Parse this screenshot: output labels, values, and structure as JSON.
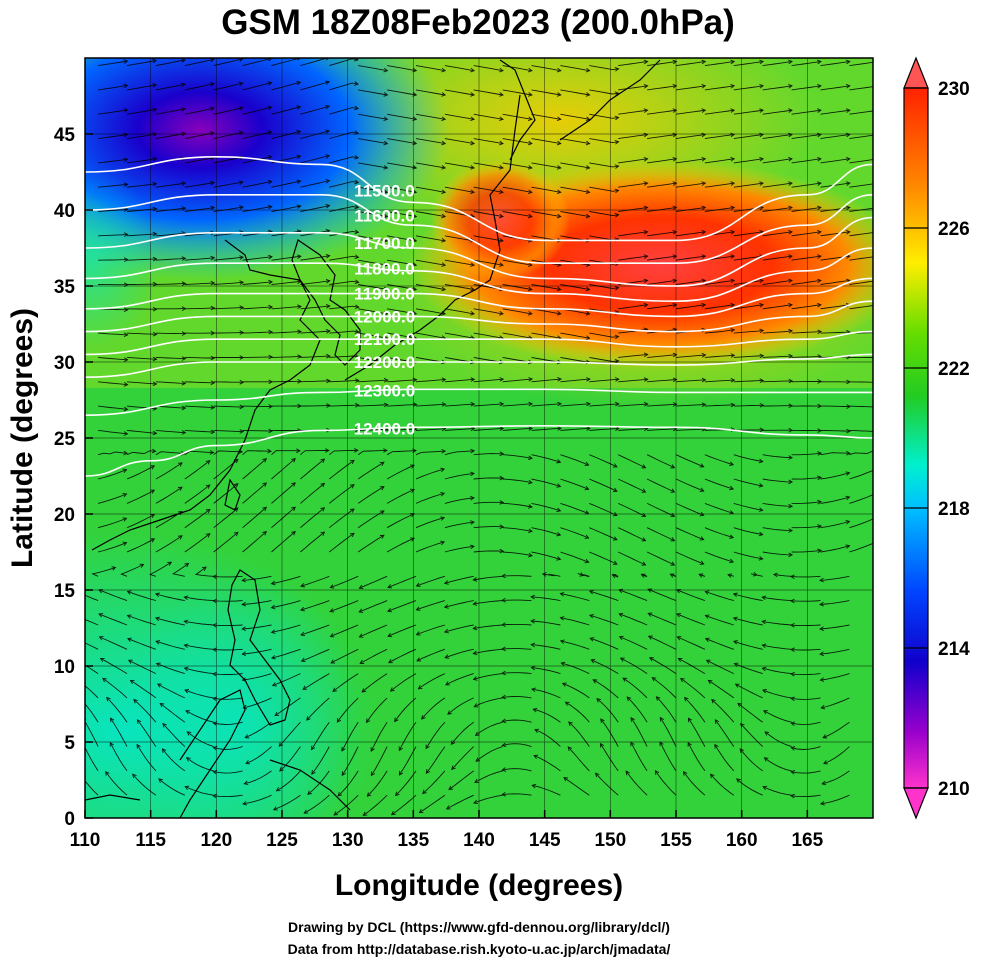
{
  "title": "GSM 18Z08Feb2023 (200.0hPa)",
  "xlabel": "Longitude (degrees)",
  "ylabel": "Latitude  (degrees)",
  "credits": [
    "Drawing by DCL (https://www.gfd-dennou.org/library/dcl/)",
    "Data from http://database.rish.kyoto-u.ac.jp/arch/jmadata/"
  ],
  "chart_data": {
    "type": "heatmap",
    "title": "GSM 18Z08Feb2023 (200.0hPa)",
    "xlabel": "Longitude (degrees)",
    "ylabel": "Latitude  (degrees)",
    "xlim": [
      110,
      170
    ],
    "ylim": [
      0,
      50
    ],
    "x_ticks": [
      110,
      115,
      120,
      125,
      130,
      135,
      140,
      145,
      150,
      155,
      160,
      165
    ],
    "y_ticks": [
      0,
      5,
      10,
      15,
      20,
      25,
      30,
      35,
      40,
      45
    ],
    "grid": true,
    "colorbar": {
      "range": [
        210,
        230
      ],
      "ticks": [
        210,
        214,
        218,
        222,
        226,
        230
      ],
      "placement": "right",
      "extend": "both",
      "colors": [
        "#ff33cc",
        "#9900cc",
        "#1100cc",
        "#0044ff",
        "#00c0ff",
        "#00f0d0",
        "#22cc22",
        "#99e000",
        "#ffee00",
        "#ff8800",
        "#ff2200",
        "#ff5555"
      ]
    },
    "contours": [
      {
        "label": "11500.0",
        "lon": [
          110,
          120,
          128,
          135,
          145,
          155,
          165,
          170
        ],
        "lat": [
          42.5,
          43.5,
          43,
          40.5,
          38,
          38,
          41,
          43
        ]
      },
      {
        "label": "11600.0",
        "lon": [
          110,
          120,
          128,
          135,
          145,
          155,
          165,
          170
        ],
        "lat": [
          40,
          41,
          41,
          39,
          36.5,
          36.5,
          39,
          41
        ]
      },
      {
        "label": "11700.0",
        "lon": [
          110,
          120,
          128,
          135,
          145,
          155,
          165,
          170
        ],
        "lat": [
          37.5,
          38.5,
          38.5,
          37.5,
          35.5,
          35,
          37.5,
          39.5
        ]
      },
      {
        "label": "11800.0",
        "lon": [
          110,
          120,
          128,
          135,
          145,
          155,
          165,
          170
        ],
        "lat": [
          35.5,
          36.5,
          36.5,
          36,
          34.5,
          34,
          36,
          37.5
        ]
      },
      {
        "label": "11900.0",
        "lon": [
          110,
          120,
          128,
          135,
          145,
          155,
          165,
          170
        ],
        "lat": [
          33.5,
          34.5,
          34.5,
          34.5,
          33.5,
          33,
          34.5,
          35.5
        ]
      },
      {
        "label": "12000.0",
        "lon": [
          110,
          120,
          128,
          135,
          145,
          155,
          165,
          170
        ],
        "lat": [
          32,
          33,
          33,
          33,
          32.5,
          32,
          33,
          34
        ]
      },
      {
        "label": "12100.0",
        "lon": [
          110,
          120,
          128,
          135,
          145,
          155,
          165,
          170
        ],
        "lat": [
          30.5,
          31.5,
          31.5,
          31.5,
          31.5,
          31,
          31.5,
          32
        ]
      },
      {
        "label": "12200.0",
        "lon": [
          110,
          120,
          128,
          135,
          145,
          155,
          165,
          170
        ],
        "lat": [
          29,
          30,
          30,
          30,
          30,
          29.8,
          30.2,
          30.5
        ]
      },
      {
        "label": "12300.0",
        "lon": [
          110,
          120,
          128,
          135,
          145,
          155,
          165,
          170
        ],
        "lat": [
          26.5,
          27.5,
          28,
          28.2,
          28.2,
          28,
          28,
          28
        ]
      },
      {
        "label": "12400.0",
        "lon": [
          110,
          115,
          120,
          128,
          135,
          145,
          155,
          165,
          170
        ],
        "lat": [
          22.5,
          23.5,
          24.5,
          25.5,
          25.7,
          25.8,
          25.7,
          25.2,
          25
        ]
      }
    ]
  }
}
